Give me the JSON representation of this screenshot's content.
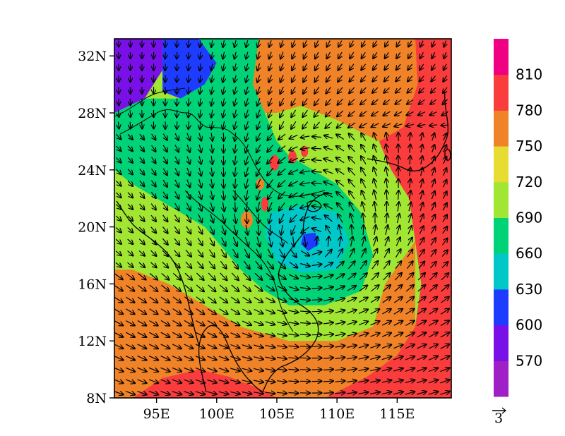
{
  "map": {
    "lon_ticks": [
      "95E",
      "100E",
      "105E",
      "110E",
      "115E"
    ],
    "lat_ticks": [
      "32N",
      "28N",
      "24N",
      "20N",
      "16N",
      "12N",
      "8N"
    ],
    "lon_tick_values": [
      95,
      100,
      105,
      110,
      115
    ],
    "lat_tick_values": [
      32,
      28,
      24,
      20,
      16,
      12,
      8
    ],
    "lon_range": [
      91.5,
      119.5
    ],
    "lat_range": [
      8,
      33.2
    ],
    "vortex_center": {
      "lon": 108,
      "lat": 19
    },
    "shading": {
      "background_value": 720,
      "regions": [
        {
          "value": 570,
          "description": "purple patch",
          "poly": [
            [
              91.5,
              33.2
            ],
            [
              95.5,
              33.2
            ],
            [
              95.5,
              31
            ],
            [
              94,
              29
            ],
            [
              91.5,
              28
            ]
          ]
        },
        {
          "value": 600,
          "description": "blue plateau",
          "poly": [
            [
              95.5,
              33.2
            ],
            [
              98.5,
              33.2
            ],
            [
              100,
              31.5
            ],
            [
              99,
              30
            ],
            [
              97,
              29
            ],
            [
              95.5,
              29.5
            ],
            [
              95.5,
              31
            ]
          ]
        },
        {
          "value": 660,
          "description": "green central belt",
          "poly": [
            [
              91.5,
              28
            ],
            [
              94,
              29
            ],
            [
              97,
              29
            ],
            [
              99,
              30
            ],
            [
              100,
              31.5
            ],
            [
              98.5,
              33.2
            ],
            [
              103.5,
              33.2
            ],
            [
              103,
              30
            ],
            [
              104,
              28
            ],
            [
              105,
              26
            ],
            [
              106,
              25
            ],
            [
              108,
              24
            ],
            [
              110,
              23
            ],
            [
              112,
              21
            ],
            [
              113,
              18
            ],
            [
              112,
              15.5
            ],
            [
              109,
              14.5
            ],
            [
              106,
              14.5
            ],
            [
              104,
              15.5
            ],
            [
              102,
              17
            ],
            [
              100,
              19
            ],
            [
              99,
              20
            ],
            [
              97,
              21
            ],
            [
              95,
              22
            ],
            [
              93,
              23
            ],
            [
              91.5,
              24
            ]
          ]
        },
        {
          "value": 690,
          "description": "green outer",
          "poly": [
            [
              91.5,
              24
            ],
            [
              93,
              23
            ],
            [
              95,
              22
            ],
            [
              97,
              21
            ],
            [
              99,
              20
            ],
            [
              100,
              19
            ],
            [
              102,
              17
            ],
            [
              104,
              15.5
            ],
            [
              106,
              14.5
            ],
            [
              109,
              14.5
            ],
            [
              112,
              15.5
            ],
            [
              113,
              18
            ],
            [
              114,
              16
            ],
            [
              113,
              13
            ],
            [
              110,
              12
            ],
            [
              106,
              12
            ],
            [
              102,
              13
            ],
            [
              99,
              14.5
            ],
            [
              96,
              16
            ],
            [
              93,
              17
            ],
            [
              91.5,
              17
            ]
          ]
        },
        {
          "value": 630,
          "description": "cyan core",
          "poly": [
            [
              104.5,
              21
            ],
            [
              107,
              21.5
            ],
            [
              110,
              21
            ],
            [
              111,
              19
            ],
            [
              110,
              17
            ],
            [
              107,
              16.8
            ],
            [
              105,
              17.5
            ],
            [
              104,
              19.5
            ]
          ]
        },
        {
          "value": 600,
          "description": "blue eye",
          "poly": [
            [
              107.2,
              19.5
            ],
            [
              108.2,
              19.6
            ],
            [
              108.5,
              18.8
            ],
            [
              107.6,
              18.3
            ],
            [
              107,
              18.8
            ]
          ]
        },
        {
          "value": 780,
          "description": "orange east",
          "poly": [
            [
              119.5,
              33.2
            ],
            [
              116.5,
              33.2
            ],
            [
              116.7,
              30
            ],
            [
              115.5,
              27
            ],
            [
              113.5,
              26
            ],
            [
              114.5,
              24
            ],
            [
              116,
              22
            ],
            [
              116.5,
              19
            ],
            [
              117,
              16
            ],
            [
              116.5,
              13
            ],
            [
              115,
              11
            ],
            [
              112.5,
              9.5
            ],
            [
              109,
              8
            ],
            [
              119.5,
              8
            ]
          ]
        },
        {
          "value": 780,
          "description": "orange south-west",
          "poly": [
            [
              93,
              8
            ],
            [
              95.5,
              9.4
            ],
            [
              98.5,
              10
            ],
            [
              101,
              9.5
            ],
            [
              104,
              8.5
            ],
            [
              105,
              8
            ]
          ]
        },
        {
          "value": 750,
          "description": "yellow north",
          "poly": [
            [
              103.5,
              33.2
            ],
            [
              116.5,
              33.2
            ],
            [
              116.7,
              30
            ],
            [
              115.5,
              27
            ],
            [
              113.5,
              26
            ],
            [
              110,
              27.5
            ],
            [
              107,
              28.5
            ],
            [
              105,
              28
            ],
            [
              104,
              28
            ],
            [
              103,
              30
            ]
          ]
        },
        {
          "value": 750,
          "description": "yellow south-west",
          "poly": [
            [
              91.5,
              17
            ],
            [
              93,
              17
            ],
            [
              96,
              16
            ],
            [
              99,
              14.5
            ],
            [
              102,
              13
            ],
            [
              106,
              12
            ],
            [
              110,
              12
            ],
            [
              113,
              13
            ],
            [
              114,
              16
            ],
            [
              116.5,
              19
            ],
            [
              116.5,
              13
            ],
            [
              115,
              11
            ],
            [
              112.5,
              9.5
            ],
            [
              109,
              8
            ],
            [
              105,
              8
            ],
            [
              104,
              8.5
            ],
            [
              101,
              9.5
            ],
            [
              98.5,
              10
            ],
            [
              95.5,
              9.4
            ],
            [
              93,
              8
            ],
            [
              91.5,
              8
            ]
          ]
        }
      ],
      "spots": [
        {
          "value": 780,
          "lon": 104.8,
          "lat": 24.5,
          "rx": 0.4,
          "ry": 0.55
        },
        {
          "value": 780,
          "lon": 106.3,
          "lat": 24.9,
          "rx": 0.35,
          "ry": 0.45
        },
        {
          "value": 780,
          "lon": 107.3,
          "lat": 25.3,
          "rx": 0.3,
          "ry": 0.4
        },
        {
          "value": 780,
          "lon": 104.0,
          "lat": 21.6,
          "rx": 0.3,
          "ry": 0.5
        },
        {
          "value": 750,
          "lon": 103.6,
          "lat": 23.0,
          "rx": 0.35,
          "ry": 0.4
        },
        {
          "value": 750,
          "lon": 102.5,
          "lat": 20.5,
          "rx": 0.5,
          "ry": 0.6
        }
      ]
    }
  },
  "colorbar": {
    "labels": [
      "570",
      "600",
      "630",
      "660",
      "690",
      "720",
      "750",
      "780",
      "810"
    ],
    "colors": [
      "#a020c8",
      "#7a10e8",
      "#1e3cff",
      "#00c8c8",
      "#00d278",
      "#a0e632",
      "#e6dc32",
      "#f08228",
      "#fa3c3c",
      "#f00082"
    ]
  },
  "vector_reference": {
    "label": "3"
  }
}
